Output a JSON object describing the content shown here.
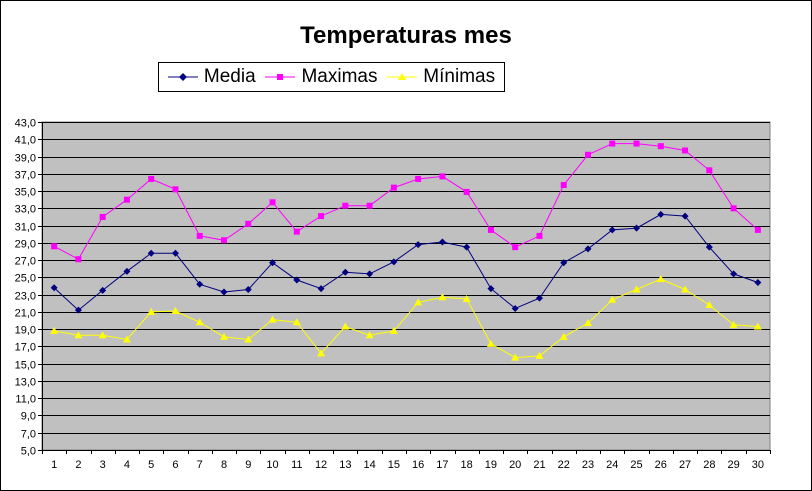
{
  "chart_data": {
    "type": "line",
    "title": "Temperaturas mes",
    "xlabel": "",
    "ylabel": "",
    "categories": [
      "1",
      "2",
      "3",
      "4",
      "5",
      "6",
      "7",
      "8",
      "9",
      "10",
      "11",
      "12",
      "13",
      "14",
      "15",
      "16",
      "17",
      "18",
      "19",
      "20",
      "21",
      "22",
      "23",
      "24",
      "25",
      "26",
      "27",
      "28",
      "29",
      "30"
    ],
    "yticks": [
      "5,0",
      "7,0",
      "9,0",
      "11,0",
      "13,0",
      "15,0",
      "17,0",
      "19,0",
      "21,0",
      "23,0",
      "25,0",
      "27,0",
      "29,0",
      "31,0",
      "33,0",
      "35,0",
      "37,0",
      "39,0",
      "41,0",
      "43,0"
    ],
    "ylim": [
      5,
      43
    ],
    "grid": true,
    "legend_position": "top-left",
    "plot_background": "#c0c0c0",
    "series": [
      {
        "name": "Media",
        "color": "#000080",
        "marker": "diamond",
        "values": [
          23.8,
          21.2,
          23.5,
          25.7,
          27.8,
          27.8,
          24.2,
          23.3,
          23.6,
          26.7,
          24.7,
          23.7,
          25.6,
          25.4,
          26.8,
          28.8,
          29.1,
          28.5,
          23.7,
          21.4,
          22.6,
          26.7,
          28.3,
          30.5,
          30.7,
          32.3,
          32.1,
          28.5,
          25.4,
          24.4
        ]
      },
      {
        "name": "Maximas",
        "color": "#ff00ff",
        "marker": "square",
        "values": [
          28.6,
          27.1,
          32.0,
          34.0,
          36.4,
          35.2,
          29.8,
          29.3,
          31.2,
          33.7,
          30.3,
          32.1,
          33.3,
          33.3,
          35.4,
          36.4,
          36.7,
          34.9,
          30.5,
          28.5,
          29.8,
          35.7,
          39.2,
          40.5,
          40.5,
          40.2,
          39.7,
          37.4,
          33.0,
          30.5
        ]
      },
      {
        "name": "Mínimas",
        "color": "#ffff00",
        "marker": "triangle",
        "values": [
          18.8,
          18.3,
          18.3,
          17.8,
          21.0,
          21.1,
          19.8,
          18.1,
          17.8,
          20.1,
          19.8,
          16.2,
          19.3,
          18.3,
          18.8,
          22.1,
          22.7,
          22.5,
          17.3,
          15.7,
          15.9,
          18.1,
          19.7,
          22.4,
          23.6,
          24.8,
          23.6,
          21.8,
          19.5,
          19.3
        ]
      }
    ]
  }
}
